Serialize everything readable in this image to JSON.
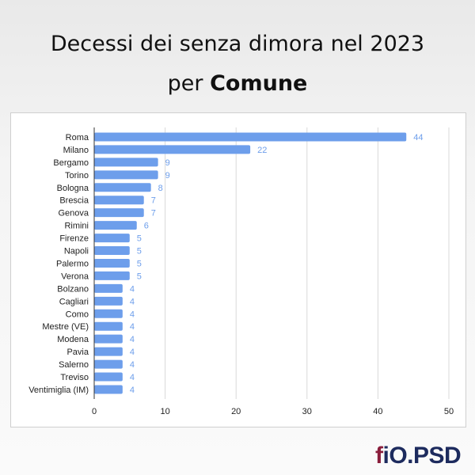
{
  "title_line1": "Decessi dei senza dimora nel 2023",
  "title_line2_prefix": "per",
  "title_line2_bold": "Comune",
  "logo": {
    "f": "f",
    "rest": "iO.PSD"
  },
  "colors": {
    "bar": "#6d9eeb",
    "label": "#6d9eeb",
    "grid": "#d9d9d9",
    "axis": "#333333",
    "text": "#222222"
  },
  "chart_data": {
    "type": "bar",
    "orientation": "horizontal",
    "title": "Decessi dei senza dimora nel 2023 per Comune",
    "categories": [
      "Roma",
      "Milano",
      "Bergamo",
      "Torino",
      "Bologna",
      "Brescia",
      "Genova",
      "Rimini",
      "Firenze",
      "Napoli",
      "Palermo",
      "Verona",
      "Bolzano",
      "Cagliari",
      "Como",
      "Mestre (VE)",
      "Modena",
      "Pavia",
      "Salerno",
      "Treviso",
      "Ventimiglia (IM)"
    ],
    "values": [
      44,
      22,
      9,
      9,
      8,
      7,
      7,
      6,
      5,
      5,
      5,
      5,
      4,
      4,
      4,
      4,
      4,
      4,
      4,
      4,
      4
    ],
    "xlim": [
      0,
      50
    ],
    "xticks": [
      0,
      10,
      20,
      30,
      40,
      50
    ],
    "grid": true,
    "data_labels": true
  }
}
